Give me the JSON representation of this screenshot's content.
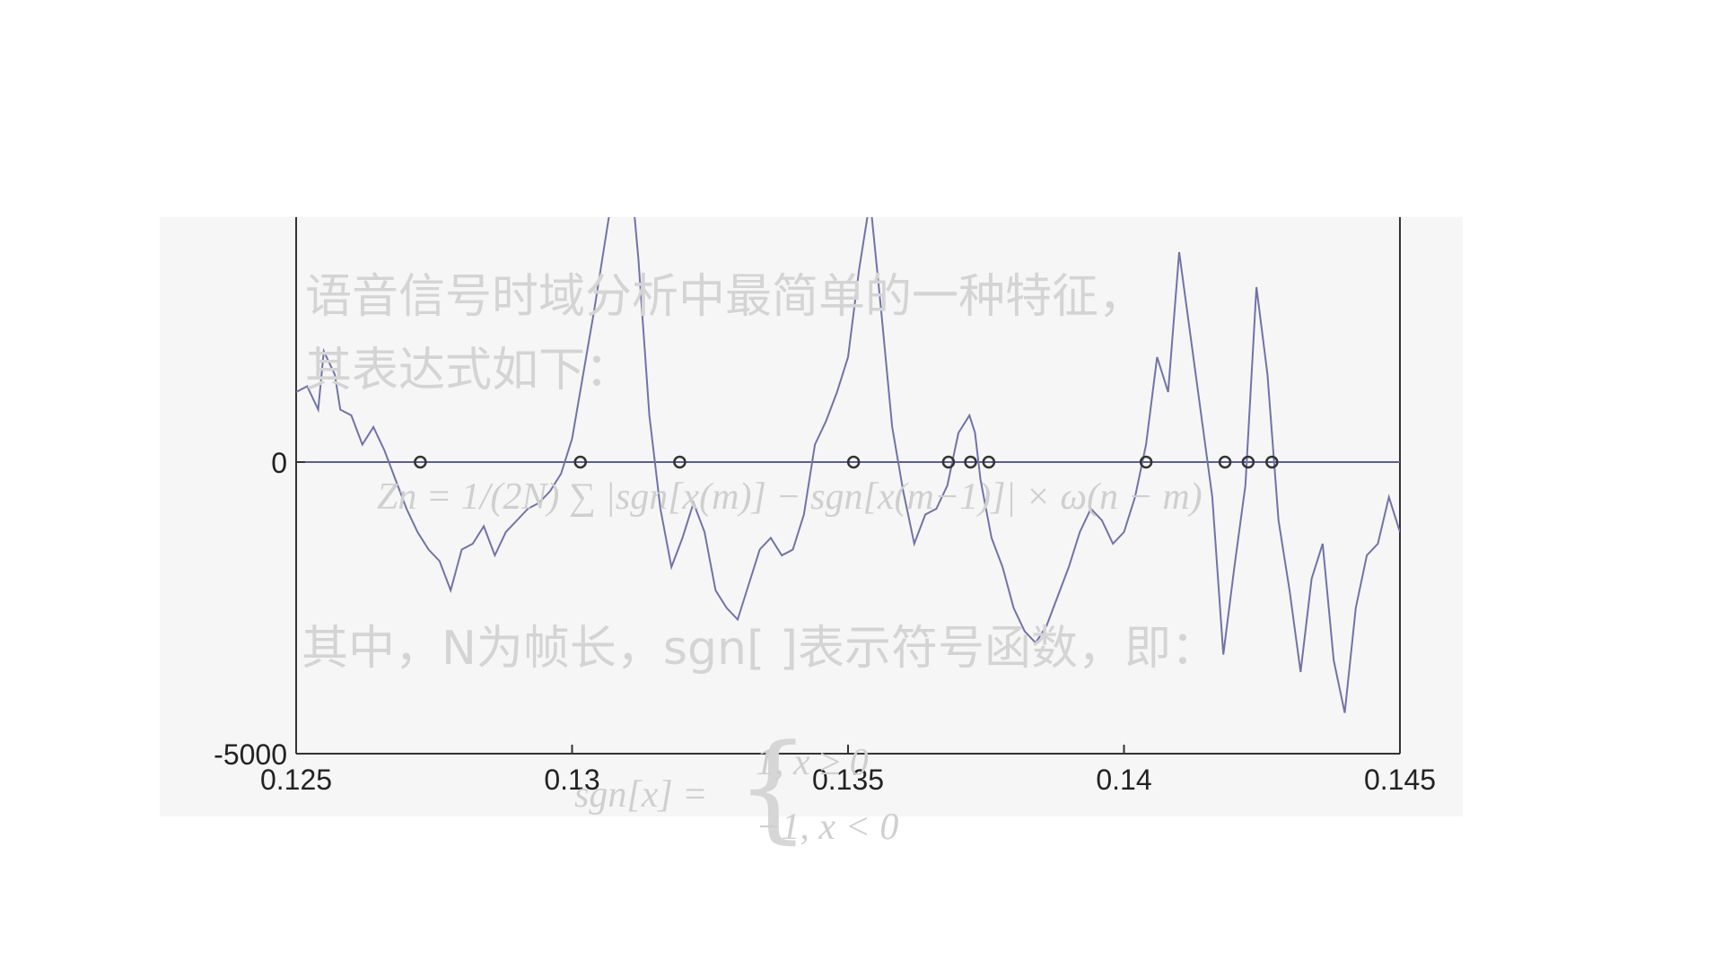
{
  "overlay": {
    "line1": "语音信号时域分析中最简单的一种特征，",
    "line2": "其表达式如下：",
    "line3": "其中，N为帧长，sgn[ ]表示符号函数，即：",
    "formula_zn": "Zn = 1/(2N) ∑ |sgn[x(m)] − sgn[x(m−1)]| × ω(n − m)",
    "formula_sgn_lhs": "sgn[x] =",
    "formula_sgn_case1": "1,    x ≥ 0",
    "formula_sgn_case2": "−1,    x < 0"
  },
  "chart_data": {
    "type": "line",
    "title": "",
    "xlabel": "",
    "ylabel": "",
    "xlim": [
      0.125,
      0.145
    ],
    "ylim": [
      -5000,
      4200
    ],
    "xticks": [
      0.125,
      0.13,
      0.135,
      0.14,
      0.145
    ],
    "xtick_labels": [
      "0.125",
      "0.13",
      "0.135",
      "0.14",
      "0.145"
    ],
    "yticks": [
      -5000,
      0
    ],
    "ytick_labels": [
      "-5000",
      "0"
    ],
    "grid": false,
    "colors": {
      "line": "#6f73a8",
      "axis": "#333333",
      "zero_line": "#5a5e96",
      "marker": "#333333"
    },
    "series": [
      {
        "x": [
          0.125,
          0.1252,
          0.1254,
          0.1255,
          0.1257,
          0.1258,
          0.126,
          0.1262,
          0.1264,
          0.1266,
          0.1268,
          0.127,
          0.1272,
          0.1274,
          0.1276,
          0.1278,
          0.128,
          0.1282,
          0.1284,
          0.1286,
          0.1288,
          0.129,
          0.1292,
          0.1294,
          0.1296,
          0.1298,
          0.13,
          0.1302,
          0.1304,
          0.1306,
          0.1308,
          0.131,
          0.1312,
          0.1314,
          0.1316,
          0.1318,
          0.132,
          0.1322,
          0.1324,
          0.1326,
          0.1328,
          0.133,
          0.1332,
          0.1334,
          0.1336,
          0.1338,
          0.134,
          0.1342,
          0.1344,
          0.1346,
          0.1348,
          0.135,
          0.1352,
          0.1354,
          0.1356,
          0.1358,
          0.136,
          0.1362,
          0.1364,
          0.1366,
          0.1368,
          0.137,
          0.1372,
          0.1373,
          0.1374,
          0.1376,
          0.1378,
          0.138,
          0.1382,
          0.1384,
          0.1386,
          0.1388,
          0.139,
          0.1392,
          0.1394,
          0.1396,
          0.1398,
          0.14,
          0.1402,
          0.1404,
          0.1406,
          0.1408,
          0.141,
          0.1412,
          0.1414,
          0.1416,
          0.1418,
          0.142,
          0.1422,
          0.1424,
          0.1426,
          0.1428,
          0.143,
          0.1432,
          0.1434,
          0.1436,
          0.1438,
          0.144,
          0.1442,
          0.1444,
          0.1446,
          0.1448,
          0.145
        ],
        "y": [
          1200,
          1300,
          900,
          1900,
          1500,
          900,
          800,
          300,
          600,
          200,
          -300,
          -800,
          -1200,
          -1500,
          -1700,
          -2200,
          -1500,
          -1400,
          -1100,
          -1600,
          -1200,
          -1000,
          -800,
          -700,
          -500,
          -200,
          400,
          1500,
          2600,
          3800,
          5000,
          5600,
          3500,
          800,
          -800,
          -1800,
          -1300,
          -700,
          -1200,
          -2200,
          -2500,
          -2700,
          -2100,
          -1500,
          -1300,
          -1600,
          -1500,
          -900,
          300,
          700,
          1200,
          1800,
          3300,
          4500,
          2600,
          600,
          -500,
          -1400,
          -900,
          -800,
          -400,
          500,
          800,
          500,
          -300,
          -1300,
          -1800,
          -2500,
          -2900,
          -3100,
          -2800,
          -2300,
          -1800,
          -1200,
          -800,
          -1000,
          -1400,
          -1200,
          -600,
          300,
          1800,
          1200,
          3600,
          2200,
          800,
          -600,
          -3300,
          -1800,
          -400,
          3000,
          1500,
          -1000,
          -2200,
          -3600,
          -2000,
          -1400,
          -3400,
          -4300,
          -2500,
          -1600,
          -1400,
          -600,
          -1200
        ]
      },
      {
        "name": "zero_crossings",
        "x": [
          0.12725,
          0.13015,
          0.13195,
          0.1351,
          0.13682,
          0.13722,
          0.13755,
          0.1404,
          0.14183,
          0.14225,
          0.14268
        ],
        "y": [
          0,
          0,
          0,
          0,
          0,
          0,
          0,
          0,
          0,
          0,
          0
        ]
      }
    ]
  }
}
